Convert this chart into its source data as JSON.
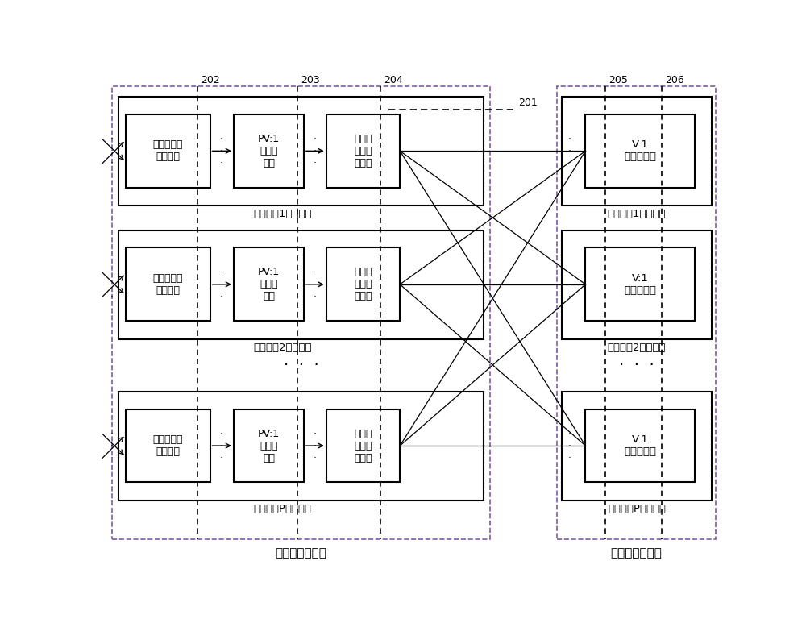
{
  "fig_width": 10.0,
  "fig_height": 7.78,
  "bg_color": "#ffffff",
  "purple_dashed": "#7b5ea7",
  "black": "#000000",
  "title_step1": "第一步分配结构",
  "title_step2": "第二步分配结构",
  "label_202": "202",
  "label_203": "203",
  "label_204": "204",
  "label_205": "205",
  "label_206": "206",
  "label_201": "201",
  "box1_text": "剪除无效新\n请求模块",
  "box2_text": "PV:1\n仲裁器\n模块",
  "box3_text": "简单虚\n信道分\n配模块",
  "box4_text": "V:1\n仲裁器模块",
  "out_unit1": "输出端口1分配单元",
  "out_unit2": "输出端口2分配单元",
  "out_unitP": "输出端口P分配单元",
  "in_unit1": "输入端口1分配单元",
  "in_unit2": "输入端口2分配单元",
  "in_unitP": "输入端口P分配单元"
}
